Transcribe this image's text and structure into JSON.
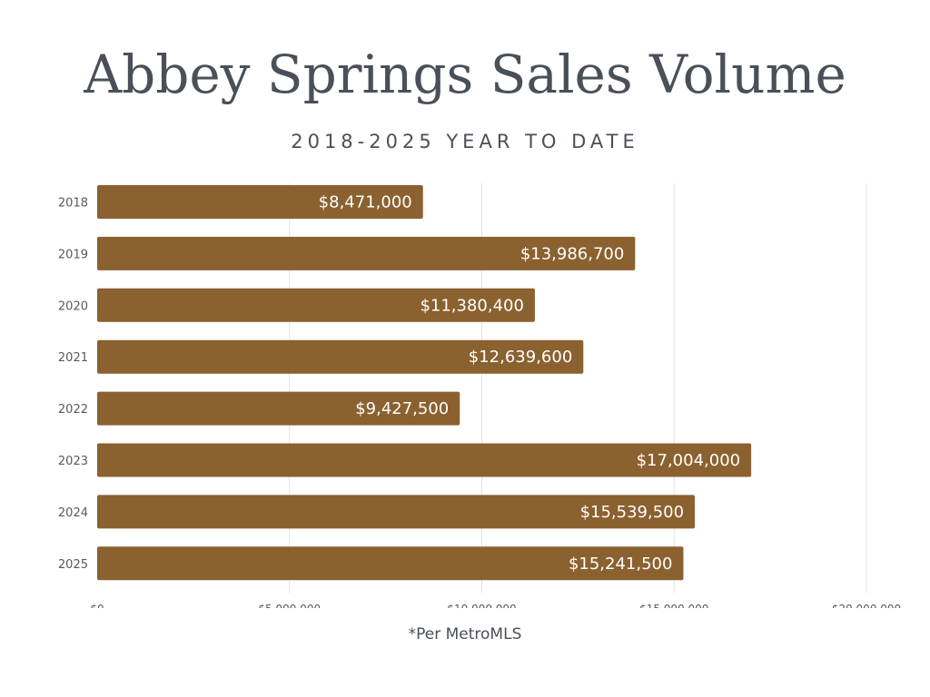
{
  "title": "Abbey Springs Sales Volume",
  "subtitle": "2018-2025 YEAR TO DATE",
  "footnote": "*Per MetroMLS",
  "colors": {
    "bar": "#8b6130",
    "grid": "#e3e3e3",
    "title": "#4a5059"
  },
  "chart_data": {
    "type": "bar",
    "orientation": "horizontal",
    "title": "Abbey Springs Sales Volume",
    "subtitle": "2018-2025 YEAR TO DATE",
    "categories": [
      "2018",
      "2019",
      "2020",
      "2021",
      "2022",
      "2023",
      "2024",
      "2025"
    ],
    "values": [
      8471000,
      13986700,
      11380400,
      12639600,
      9427500,
      17004000,
      15539500,
      15241500
    ],
    "value_labels": [
      "$8,471,000",
      "$13,986,700",
      "$11,380,400",
      "$12,639,600",
      "$9,427,500",
      "$17,004,000",
      "$15,539,500",
      "$15,241,500"
    ],
    "xlim": [
      0,
      20000000
    ],
    "x_ticks": [
      0,
      5000000,
      10000000,
      15000000,
      20000000
    ],
    "x_tick_labels": [
      "$0",
      "$5,000,000",
      "$10,000,000",
      "$15,000,000",
      "$20,000,000"
    ],
    "grid": true,
    "legend": "none"
  }
}
